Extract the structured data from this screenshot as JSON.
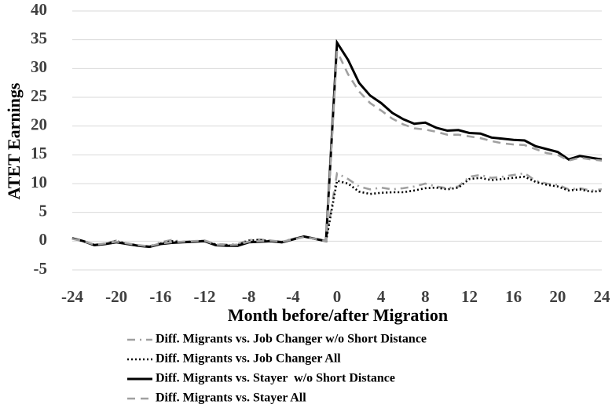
{
  "chart_data": {
    "type": "line",
    "x_label": "Month before/after Migration",
    "y_label": "ATET Earnings",
    "x": [
      -24,
      -23,
      -22,
      -21,
      -20,
      -19,
      -18,
      -17,
      -16,
      -15,
      -14,
      -13,
      -12,
      -11,
      -10,
      -9,
      -8,
      -7,
      -6,
      -5,
      -4,
      -3,
      -2,
      -1,
      0,
      1,
      2,
      3,
      4,
      5,
      6,
      7,
      8,
      9,
      10,
      11,
      12,
      13,
      14,
      15,
      16,
      17,
      18,
      19,
      20,
      21,
      22,
      23,
      24
    ],
    "xlim": [
      -24,
      24
    ],
    "xticks": [
      -24,
      -20,
      -16,
      -12,
      -8,
      -4,
      0,
      4,
      8,
      12,
      16,
      20,
      24
    ],
    "ylim": [
      -5,
      40
    ],
    "yticks": [
      -5,
      0,
      5,
      10,
      15,
      20,
      25,
      30,
      35,
      40
    ],
    "grid": true,
    "legend": "bottom",
    "series": [
      {
        "name": "Diff. Migrants vs. Job Changer w/o Short Distance",
        "color": "#a0a0a0",
        "style": "dashdot",
        "values": [
          0.5,
          0,
          -0.6,
          -0.4,
          0.1,
          -0.4,
          -0.7,
          -0.9,
          -0.2,
          0.2,
          -0.1,
          0,
          0.1,
          -0.5,
          -0.6,
          -0.5,
          0.2,
          0.3,
          0.1,
          -0.1,
          0.4,
          0.8,
          0.4,
          0,
          11.8,
          10.8,
          9.5,
          9,
          9.3,
          9,
          9.2,
          9.5,
          10,
          9.5,
          9.2,
          9.5,
          11.2,
          11.5,
          11,
          11.2,
          11.5,
          11.8,
          10.5,
          10,
          9.8,
          9,
          9.2,
          8.8,
          9
        ]
      },
      {
        "name": "Diff. Migrants vs. Job Changer All",
        "color": "#000000",
        "style": "dotted",
        "values": [
          0.5,
          0,
          -0.7,
          -0.5,
          0,
          -0.5,
          -0.8,
          -1,
          -0.4,
          0,
          -0.2,
          -0.1,
          0,
          -0.6,
          -0.7,
          -0.7,
          0.1,
          0.2,
          0,
          -0.2,
          0.3,
          0.8,
          0.4,
          0,
          10.5,
          10,
          8.6,
          8.2,
          8.4,
          8.5,
          8.5,
          8.8,
          9.2,
          9.3,
          9,
          9.3,
          10.8,
          11,
          10.6,
          10.8,
          11,
          11.2,
          10.3,
          9.8,
          9.5,
          8.8,
          9,
          8.6,
          8.7
        ]
      },
      {
        "name": "Diff. Migrants vs. Stayer  w/o Short Distance",
        "color": "#000000",
        "style": "solid",
        "values": [
          0.5,
          0,
          -0.7,
          -0.5,
          -0.2,
          -0.5,
          -0.8,
          -1,
          -0.5,
          -0.3,
          -0.2,
          -0.1,
          0,
          -0.7,
          -0.8,
          -0.8,
          -0.2,
          -0.1,
          0,
          -0.2,
          0.3,
          0.8,
          0.4,
          0,
          34.5,
          31.5,
          27.5,
          25.3,
          24,
          22.3,
          21.2,
          20.4,
          20.6,
          19.7,
          19.2,
          19.3,
          18.8,
          18.7,
          18,
          17.8,
          17.6,
          17.5,
          16.5,
          16,
          15.5,
          14.2,
          14.8,
          14.5,
          14.2
        ]
      },
      {
        "name": "Diff. Migrants vs. Stayer All",
        "color": "#a0a0a0",
        "style": "dashed",
        "values": [
          0.4,
          0,
          -0.6,
          -0.4,
          -0.1,
          -0.4,
          -0.7,
          -0.9,
          -0.4,
          -0.2,
          -0.1,
          0,
          0.1,
          -0.6,
          -0.7,
          -0.6,
          -0.1,
          0,
          0.1,
          -0.1,
          0.3,
          0.7,
          0.4,
          0,
          33,
          29,
          26,
          24,
          22.7,
          21.3,
          20.3,
          19.6,
          19.4,
          19,
          18.5,
          18.5,
          18.2,
          17.9,
          17.4,
          17,
          16.8,
          16.7,
          16,
          15.3,
          15,
          14,
          14.5,
          14.2,
          14
        ]
      }
    ]
  }
}
